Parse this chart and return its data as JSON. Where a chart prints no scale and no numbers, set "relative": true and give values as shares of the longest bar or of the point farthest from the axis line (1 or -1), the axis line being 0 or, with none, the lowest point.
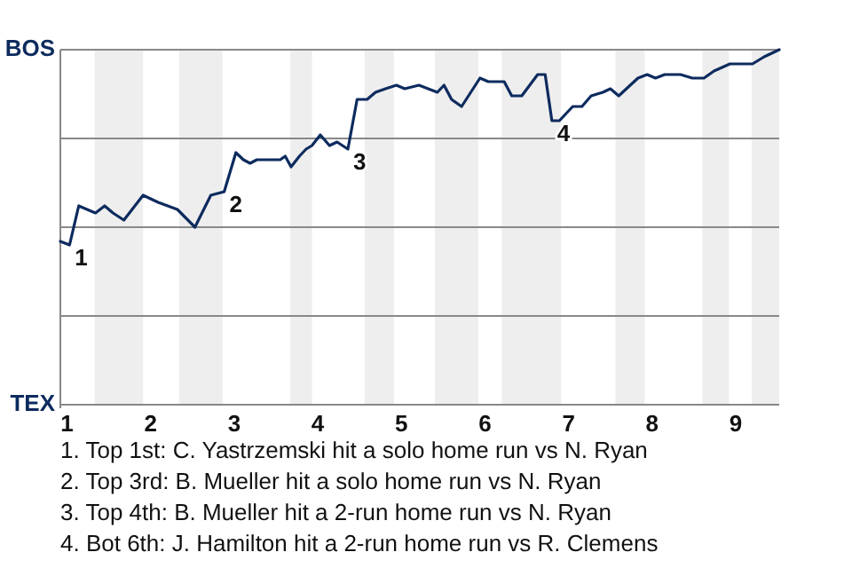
{
  "chart_data": {
    "type": "line",
    "relative": true,
    "x": [
      0.92,
      1.03,
      1.14,
      1.34,
      1.45,
      1.55,
      1.68,
      1.91,
      2.09,
      2.32,
      2.53,
      2.72,
      2.88,
      3.02,
      3.11,
      3.19,
      3.27,
      3.55,
      3.61,
      3.68,
      3.78,
      3.86,
      3.93,
      4.03,
      4.14,
      4.23,
      4.36,
      4.47,
      4.59,
      4.69,
      4.81,
      4.94,
      5.04,
      5.21,
      5.43,
      5.51,
      5.6,
      5.72,
      5.94,
      6.04,
      6.23,
      6.32,
      6.44,
      6.63,
      6.72,
      6.8,
      6.89,
      7.05,
      7.16,
      7.27,
      7.41,
      7.5,
      7.6,
      7.83,
      7.94,
      8.04,
      8.15,
      8.34,
      8.48,
      8.54,
      8.62,
      8.74,
      8.93,
      9.04,
      9.2,
      9.34,
      9.52
    ],
    "series": [
      {
        "color": "#0d2b5e",
        "values": [
          0.46,
          0.45,
          0.56,
          0.54,
          0.56,
          0.54,
          0.52,
          0.59,
          0.57,
          0.55,
          0.5,
          0.59,
          0.6,
          0.71,
          0.69,
          0.68,
          0.69,
          0.69,
          0.7,
          0.67,
          0.7,
          0.72,
          0.73,
          0.76,
          0.73,
          0.74,
          0.72,
          0.86,
          0.86,
          0.88,
          0.89,
          0.9,
          0.89,
          0.9,
          0.88,
          0.9,
          0.86,
          0.84,
          0.92,
          0.91,
          0.91,
          0.87,
          0.87,
          0.93,
          0.93,
          0.8,
          0.8,
          0.84,
          0.84,
          0.87,
          0.88,
          0.89,
          0.87,
          0.92,
          0.93,
          0.92,
          0.93,
          0.93,
          0.92,
          0.92,
          0.92,
          0.94,
          0.96,
          0.96,
          0.96,
          0.98,
          1
        ]
      }
    ],
    "xlim": [
      0.92,
      9.52
    ],
    "xticks": [
      1,
      2,
      3,
      4,
      5,
      6,
      7,
      8,
      9
    ],
    "marker": "none",
    "line_style": "solid",
    "ref_lines": [
      {
        "axis": "y",
        "value": 0.25,
        "color": "#888888"
      },
      {
        "axis": "y",
        "value": 0.5,
        "color": "#888888"
      },
      {
        "axis": "y",
        "value": 0.75,
        "color": "#888888"
      }
    ],
    "bands": [
      {
        "axis": "x",
        "from": 1.33,
        "to": 1.91,
        "color": "#eeeeee"
      },
      {
        "axis": "x",
        "from": 2.34,
        "to": 2.86,
        "color": "#eeeeee"
      },
      {
        "axis": "x",
        "from": 3.67,
        "to": 3.93,
        "color": "#eeeeee"
      },
      {
        "axis": "x",
        "from": 4.56,
        "to": 4.91,
        "color": "#eeeeee"
      },
      {
        "axis": "x",
        "from": 5.4,
        "to": 5.92,
        "color": "#eeeeee"
      },
      {
        "axis": "x",
        "from": 6.2,
        "to": 6.91,
        "color": "#eeeeee"
      },
      {
        "axis": "x",
        "from": 7.56,
        "to": 7.91,
        "color": "#eeeeee"
      },
      {
        "axis": "x",
        "from": 8.6,
        "to": 8.92,
        "color": "#eeeeee"
      },
      {
        "axis": "x",
        "from": 9.19,
        "to": 9.52,
        "color": "#eeeeee"
      }
    ],
    "annotations": [
      {
        "text": "1",
        "x": 1.03,
        "y": 0.45
      },
      {
        "text": "2",
        "x": 2.88,
        "y": 0.6
      },
      {
        "text": "3",
        "x": 4.36,
        "y": 0.72
      },
      {
        "text": "4",
        "x": 6.8,
        "y": 0.8
      },
      "BOS",
      "TEX",
      "1. Top 1st: C. Yastrzemski hit a solo home run vs N. Ryan",
      "2. Top 3rd: B. Mueller hit a solo home run vs N. Ryan",
      "3. Top 4th: B. Mueller hit a 2-run home run vs N. Ryan",
      "4. Bot 6th: J. Hamilton hit a 2-run home run vs R. Clemens"
    ]
  }
}
